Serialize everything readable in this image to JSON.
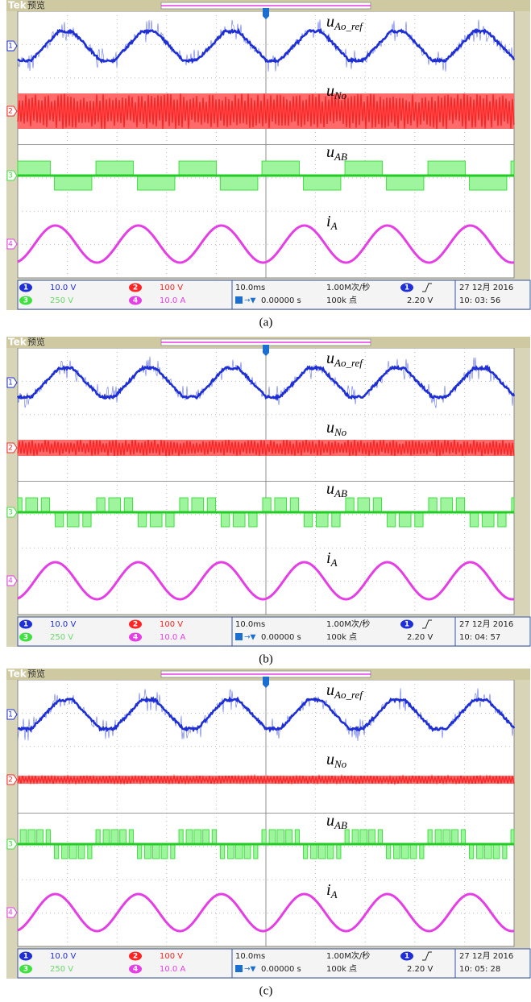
{
  "panels": [
    {
      "brand": "Tek",
      "mode": "预览",
      "channel_markers": [
        "1",
        "2",
        "3",
        "4"
      ],
      "signal_labels": [
        {
          "base": "u",
          "sub": "Ao_ref"
        },
        {
          "base": "u",
          "sub": "No"
        },
        {
          "base": "u",
          "sub": "AB"
        },
        {
          "base": "i",
          "sub": "A"
        }
      ],
      "status": [
        {
          "badge": "1",
          "text": "10.0 V"
        },
        {
          "badge": "2",
          "text": "100 V"
        },
        {
          "badge": "3",
          "text": "250 V"
        },
        {
          "badge": "4",
          "text": "10.0 A"
        }
      ],
      "timebase": "10.0ms",
      "trigger_pos": "0.00000 s",
      "sample_rate": "1.00M次/秒",
      "record": "100k 点",
      "trigger_badge": "1",
      "trigger_level": "2.20 V",
      "date": "27 12月 2016",
      "time": "10: 03: 56",
      "caption": "(a)"
    },
    {
      "brand": "Tek",
      "mode": "预览",
      "channel_markers": [
        "1",
        "2",
        "3",
        "4"
      ],
      "signal_labels": [
        {
          "base": "u",
          "sub": "Ao_ref"
        },
        {
          "base": "u",
          "sub": "No"
        },
        {
          "base": "u",
          "sub": "AB"
        },
        {
          "base": "i",
          "sub": "A"
        }
      ],
      "status": [
        {
          "badge": "1",
          "text": "10.0 V"
        },
        {
          "badge": "2",
          "text": "100 V"
        },
        {
          "badge": "3",
          "text": "250 V"
        },
        {
          "badge": "4",
          "text": "10.0 A"
        }
      ],
      "timebase": "10.0ms",
      "trigger_pos": "0.00000 s",
      "sample_rate": "1.00M次/秒",
      "record": "100k 点",
      "trigger_badge": "1",
      "trigger_level": "2.20 V",
      "date": "27 12月 2016",
      "time": "10: 04: 57",
      "caption": "(b)"
    },
    {
      "brand": "Tek",
      "mode": "预览",
      "channel_markers": [
        "1",
        "2",
        "3",
        "4"
      ],
      "signal_labels": [
        {
          "base": "u",
          "sub": "Ao_ref"
        },
        {
          "base": "u",
          "sub": "No"
        },
        {
          "base": "u",
          "sub": "AB"
        },
        {
          "base": "i",
          "sub": "A"
        }
      ],
      "status": [
        {
          "badge": "1",
          "text": "10.0 V"
        },
        {
          "badge": "2",
          "text": "100 V"
        },
        {
          "badge": "3",
          "text": "250 V"
        },
        {
          "badge": "4",
          "text": "10.0 A"
        }
      ],
      "timebase": "10.0ms",
      "trigger_pos": "0.00000 s",
      "sample_rate": "1.00M次/秒",
      "record": "100k 点",
      "trigger_badge": "1",
      "trigger_level": "2.20 V",
      "date": "27 12月 2016",
      "time": "10: 05: 28",
      "caption": "(c)"
    }
  ]
}
